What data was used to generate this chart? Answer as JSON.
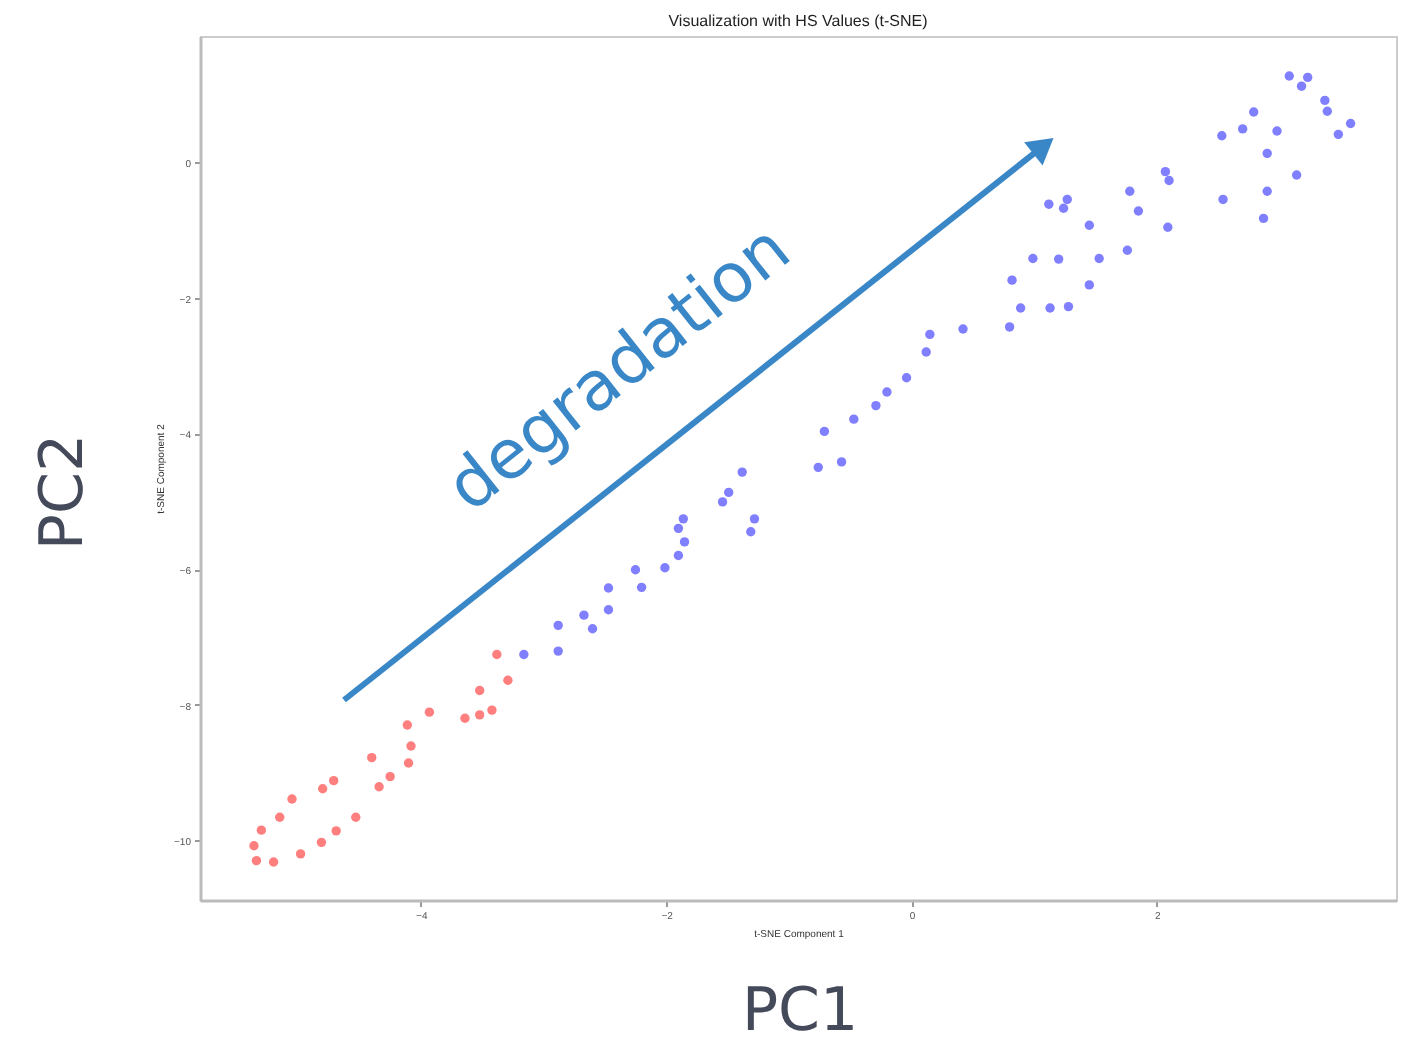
{
  "chart_data": {
    "type": "scatter",
    "title": "Visualization with HS Values (t-SNE)",
    "xlabel": "t-SNE Component 1",
    "ylabel": "t-SNE Component 2",
    "annotations": [
      "degradation",
      "PC1",
      "PC2"
    ],
    "xlim": [
      -5.8,
      3.95
    ],
    "ylim": [
      -10.88,
      1.86
    ],
    "xticks": [
      -4,
      -2,
      0,
      2
    ],
    "yticks": [
      -10,
      -8,
      -6,
      -4,
      -2,
      0
    ],
    "marker": "circle",
    "series": [
      {
        "color": "#ff7f7f",
        "x": [
          -5.36,
          -5.34,
          -5.3,
          -5.2,
          -5.15,
          -5.05,
          -4.98,
          -4.8,
          -4.81,
          -4.71,
          -4.69,
          -4.53,
          -4.4,
          -4.34,
          -4.25,
          -4.11,
          -4.08,
          -4.1,
          -3.93,
          -3.64,
          -3.52,
          -3.52,
          -3.42,
          -3.38,
          -3.29
        ],
        "values": [
          -10.08,
          -10.3,
          -9.85,
          -10.32,
          -9.66,
          -9.39,
          -10.2,
          -9.24,
          -10.03,
          -9.12,
          -9.86,
          -9.66,
          -8.78,
          -9.21,
          -9.06,
          -8.3,
          -8.61,
          -8.86,
          -8.11,
          -8.2,
          -8.15,
          -7.79,
          -8.08,
          -7.26,
          -7.64
        ]
      },
      {
        "color": "#7f7fff",
        "x": [
          -3.16,
          -2.88,
          -2.88,
          -2.67,
          -2.6,
          -2.47,
          -2.47,
          -2.25,
          -2.2,
          -2.01,
          -1.9,
          -1.9,
          -1.86,
          -1.85,
          -1.54,
          -1.49,
          -1.38,
          -1.31,
          -1.28,
          -0.76,
          -0.57,
          -0.71,
          -0.47,
          -0.29,
          -0.2,
          -0.04,
          0.12,
          0.15,
          0.42,
          0.8,
          0.82,
          0.89,
          0.99,
          1.13,
          1.2,
          1.28,
          1.45,
          1.45,
          1.53,
          1.76,
          1.12,
          1.24,
          1.27,
          1.78,
          1.85,
          2.07,
          2.1,
          2.09,
          2.53,
          2.54,
          2.7,
          2.79,
          2.87,
          2.9,
          2.9,
          2.98,
          3.08,
          3.18,
          3.23,
          3.14,
          3.37,
          3.39,
          3.48,
          3.58
        ],
        "values": [
          -7.26,
          -6.83,
          -7.21,
          -6.68,
          -6.88,
          -6.28,
          -6.6,
          -6.01,
          -6.27,
          -5.98,
          -5.8,
          -5.4,
          -5.26,
          -5.6,
          -5.01,
          -4.87,
          -4.57,
          -5.45,
          -5.26,
          -4.5,
          -4.42,
          -3.97,
          -3.79,
          -3.59,
          -3.39,
          -3.18,
          -2.8,
          -2.54,
          -2.46,
          -2.43,
          -1.74,
          -2.15,
          -1.42,
          -2.15,
          -1.43,
          -2.13,
          -1.81,
          -0.93,
          -1.42,
          -1.3,
          -0.62,
          -0.68,
          -0.55,
          -0.43,
          -0.72,
          -0.14,
          -0.27,
          -0.96,
          0.39,
          -0.55,
          0.49,
          0.74,
          -0.83,
          -0.43,
          0.13,
          0.46,
          1.27,
          1.12,
          1.25,
          -0.19,
          0.91,
          0.75,
          0.41,
          0.57
        ]
      }
    ]
  }
}
